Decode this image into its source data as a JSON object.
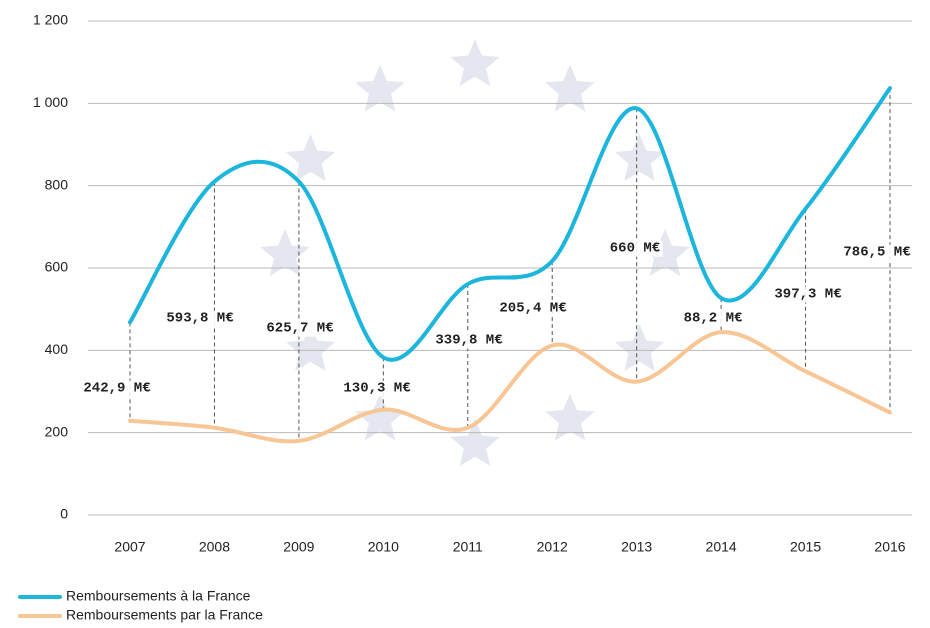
{
  "chart_data": {
    "type": "line",
    "categories": [
      "2007",
      "2008",
      "2009",
      "2010",
      "2011",
      "2012",
      "2013",
      "2014",
      "2015",
      "2016"
    ],
    "series": [
      {
        "name": "Remboursements à la France",
        "color": "#1cb5dc",
        "values": [
          468,
          810,
          810,
          383,
          561,
          617,
          988,
          527,
          744,
          1037
        ]
      },
      {
        "name": "Remboursements par la France",
        "color": "#f8c594",
        "values": [
          229,
          212,
          180,
          256,
          212,
          412,
          324,
          444,
          349,
          249
        ]
      }
    ],
    "annotations": [
      "242,9 M€",
      "593,8 M€",
      "625,7 M€",
      "130,3 M€",
      "339,8 M€",
      "205,4 M€",
      "660 M€",
      "88,2 M€",
      "397,3 M€",
      "786,5 M€"
    ],
    "ylim": [
      0,
      1200
    ],
    "yticks": [
      0,
      200,
      400,
      600,
      800,
      {
        "value": 1000,
        "label": "1 000"
      },
      {
        "value": 1200,
        "label": "1 200"
      }
    ],
    "grid": true,
    "legend": "bottom-left"
  }
}
